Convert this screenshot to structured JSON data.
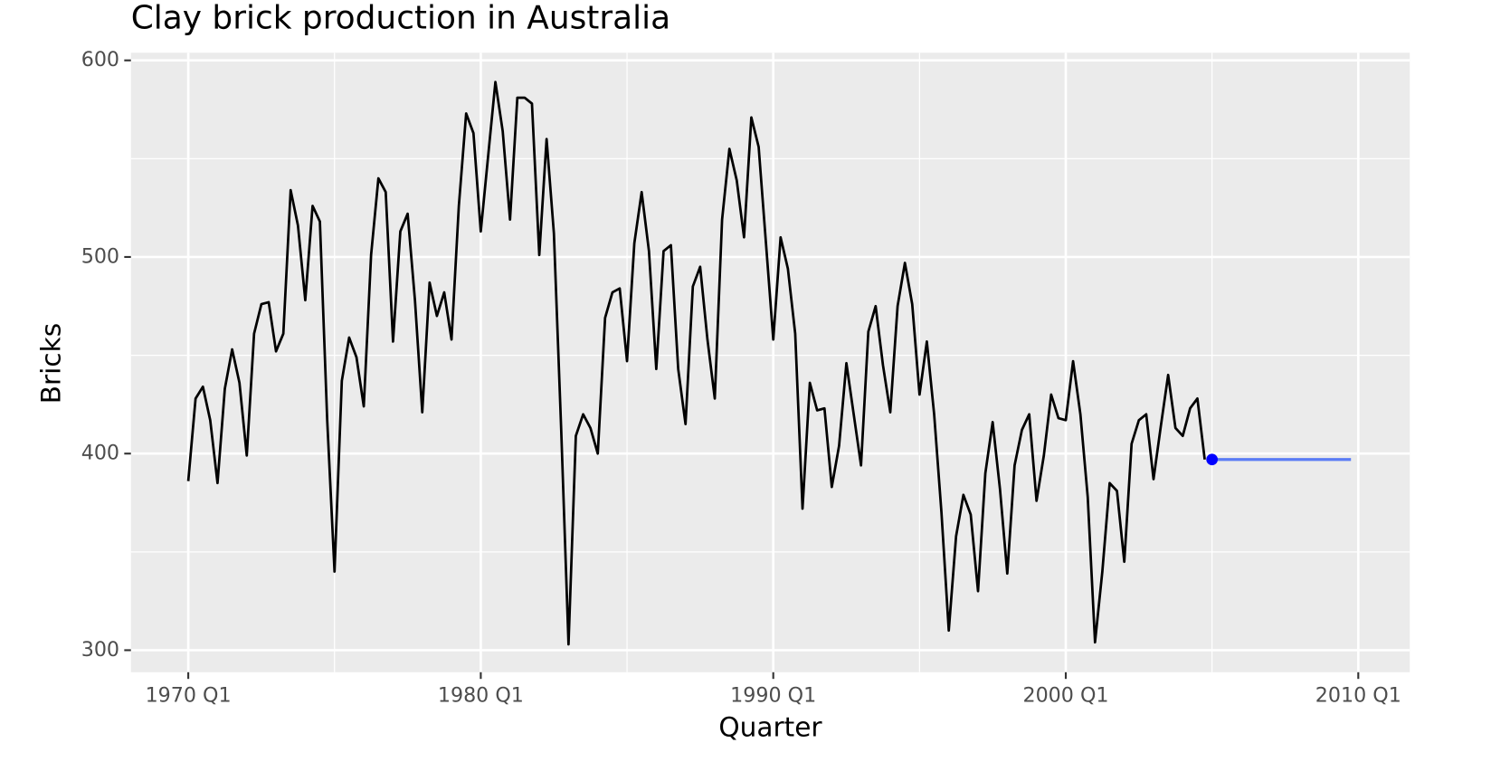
{
  "chart_data": {
    "type": "line",
    "title": "Clay brick production in Australia",
    "x_label": "Quarter",
    "y_label": "Bricks",
    "xlim": [
      1968.04,
      2011.76
    ],
    "ylim": [
      288.8,
      603.9
    ],
    "xticks": [
      {
        "value": 1970,
        "label": "1970 Q1"
      },
      {
        "value": 1980,
        "label": "1980 Q1"
      },
      {
        "value": 1990,
        "label": "1990 Q1"
      },
      {
        "value": 2000,
        "label": "2000 Q1"
      },
      {
        "value": 2010,
        "label": "2010 Q1"
      }
    ],
    "minor_xticks": [
      1975,
      1985,
      1995,
      2005
    ],
    "yticks": [
      300,
      400,
      500,
      600
    ],
    "minor_yticks": [
      350,
      450,
      550
    ],
    "grid": true,
    "panel_color": "#ebebeb",
    "series": [
      {
        "name": "Bricks",
        "color": "#000000",
        "x": [
          "1970 Q1",
          "1970 Q2",
          "1970 Q3",
          "1970 Q4",
          "1971 Q1",
          "1971 Q2",
          "1971 Q3",
          "1971 Q4",
          "1972 Q1",
          "1972 Q2",
          "1972 Q3",
          "1972 Q4",
          "1973 Q1",
          "1973 Q2",
          "1973 Q3",
          "1973 Q4",
          "1974 Q1",
          "1974 Q2",
          "1974 Q3",
          "1974 Q4",
          "1975 Q1",
          "1975 Q2",
          "1975 Q3",
          "1975 Q4",
          "1976 Q1",
          "1976 Q2",
          "1976 Q3",
          "1976 Q4",
          "1977 Q1",
          "1977 Q2",
          "1977 Q3",
          "1977 Q4",
          "1978 Q1",
          "1978 Q2",
          "1978 Q3",
          "1978 Q4",
          "1979 Q1",
          "1979 Q2",
          "1979 Q3",
          "1979 Q4",
          "1980 Q1",
          "1980 Q2",
          "1980 Q3",
          "1980 Q4",
          "1981 Q1",
          "1981 Q2",
          "1981 Q3",
          "1981 Q4",
          "1982 Q1",
          "1982 Q2",
          "1982 Q3",
          "1982 Q4",
          "1983 Q1",
          "1983 Q2",
          "1983 Q3",
          "1983 Q4",
          "1984 Q1",
          "1984 Q2",
          "1984 Q3",
          "1984 Q4",
          "1985 Q1",
          "1985 Q2",
          "1985 Q3",
          "1985 Q4",
          "1986 Q1",
          "1986 Q2",
          "1986 Q3",
          "1986 Q4",
          "1987 Q1",
          "1987 Q2",
          "1987 Q3",
          "1987 Q4",
          "1988 Q1",
          "1988 Q2",
          "1988 Q3",
          "1988 Q4",
          "1989 Q1",
          "1989 Q2",
          "1989 Q3",
          "1989 Q4",
          "1990 Q1",
          "1990 Q2",
          "1990 Q3",
          "1990 Q4",
          "1991 Q1",
          "1991 Q2",
          "1991 Q3",
          "1991 Q4",
          "1992 Q1",
          "1992 Q2",
          "1992 Q3",
          "1992 Q4",
          "1993 Q1",
          "1993 Q2",
          "1993 Q3",
          "1993 Q4",
          "1994 Q1",
          "1994 Q2",
          "1994 Q3",
          "1994 Q4",
          "1995 Q1",
          "1995 Q2",
          "1995 Q3",
          "1995 Q4",
          "1996 Q1",
          "1996 Q2",
          "1996 Q3",
          "1996 Q4",
          "1997 Q1",
          "1997 Q2",
          "1997 Q3",
          "1997 Q4",
          "1998 Q1",
          "1998 Q2",
          "1998 Q3",
          "1998 Q4",
          "1999 Q1",
          "1999 Q2",
          "1999 Q3",
          "1999 Q4",
          "2000 Q1",
          "2000 Q2",
          "2000 Q3",
          "2000 Q4",
          "2001 Q1",
          "2001 Q2",
          "2001 Q3",
          "2001 Q4",
          "2002 Q1",
          "2002 Q2",
          "2002 Q3",
          "2002 Q4",
          "2003 Q1",
          "2003 Q2",
          "2003 Q3",
          "2003 Q4",
          "2004 Q1",
          "2004 Q2",
          "2004 Q3",
          "2004 Q4"
        ],
        "values": [
          386,
          428,
          434,
          417,
          385,
          433,
          453,
          436,
          399,
          461,
          476,
          477,
          452,
          461,
          534,
          516,
          478,
          526,
          518,
          417,
          340,
          437,
          459,
          449,
          424,
          501,
          540,
          533,
          457,
          513,
          522,
          478,
          421,
          487,
          470,
          482,
          458,
          526,
          573,
          563,
          513,
          551,
          589,
          564,
          519,
          581,
          581,
          578,
          501,
          560,
          512,
          412,
          303,
          409,
          420,
          413,
          400,
          469,
          482,
          484,
          447,
          507,
          533,
          503,
          443,
          503,
          506,
          443,
          415,
          485,
          495,
          458,
          428,
          519,
          555,
          539,
          510,
          571,
          556,
          507,
          458,
          510,
          494,
          461,
          372,
          436,
          422,
          423,
          383,
          404,
          446,
          420,
          394,
          462,
          475,
          445,
          421,
          475,
          497,
          476,
          430,
          457,
          420,
          370,
          310,
          358,
          379,
          369,
          330,
          390,
          416,
          382,
          339,
          394,
          412,
          420,
          376,
          399,
          430,
          418,
          417,
          447,
          420,
          378,
          304,
          340,
          385,
          381,
          345,
          405,
          417,
          420,
          387,
          414,
          440,
          413,
          409,
          423,
          428,
          397
        ]
      },
      {
        "name": "Forecast",
        "color": "#5b7cf5",
        "point_color": "#0000ff",
        "x": [
          "2005 Q1",
          "2005 Q2",
          "2005 Q3",
          "2005 Q4",
          "2006 Q1",
          "2006 Q2",
          "2006 Q3",
          "2006 Q4",
          "2007 Q1",
          "2007 Q2",
          "2007 Q3",
          "2007 Q4",
          "2008 Q1",
          "2008 Q2",
          "2008 Q3",
          "2008 Q4",
          "2009 Q1",
          "2009 Q2",
          "2009 Q3",
          "2009 Q4"
        ],
        "values": [
          397,
          397,
          397,
          397,
          397,
          397,
          397,
          397,
          397,
          397,
          397,
          397,
          397,
          397,
          397,
          397,
          397,
          397,
          397,
          397
        ]
      }
    ]
  }
}
